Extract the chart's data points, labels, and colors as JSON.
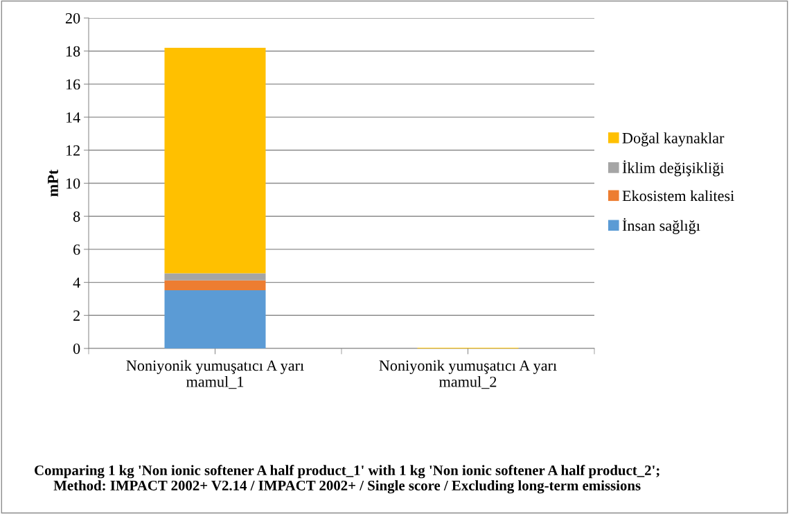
{
  "chart_data": {
    "type": "bar",
    "stacked": true,
    "ylabel": "mPt",
    "title": "Comparing 1 kg 'Non ionic softener A half product_1' with 1 kg 'Non ionic softener A half product_2';\nMethod: IMPACT 2002+ V2.14 / IMPACT 2002+ / Single score / Excluding long-term emissions",
    "categories": [
      "Noniyonik yumuşatıcı A yarı\nmamul_1",
      "Noniyonik yumuşatıcı A yarı\nmamul_2"
    ],
    "series": [
      {
        "name": "İnsan sağlığı",
        "color": "#5b9bd5",
        "values": [
          3.52,
          0.0
        ]
      },
      {
        "name": "Ekosistem kalitesi",
        "color": "#ed7d31",
        "values": [
          0.6,
          0.0
        ]
      },
      {
        "name": "İklim değişikliği",
        "color": "#a5a5a5",
        "values": [
          0.43,
          0.0
        ]
      },
      {
        "name": "Doğal kaynaklar",
        "color": "#ffc000",
        "values": [
          13.65,
          0.04
        ]
      }
    ],
    "ylim": [
      0,
      20
    ],
    "yticks": [
      0,
      2,
      4,
      6,
      8,
      10,
      12,
      14,
      16,
      18,
      20
    ],
    "grid": "y",
    "legend": "right"
  }
}
